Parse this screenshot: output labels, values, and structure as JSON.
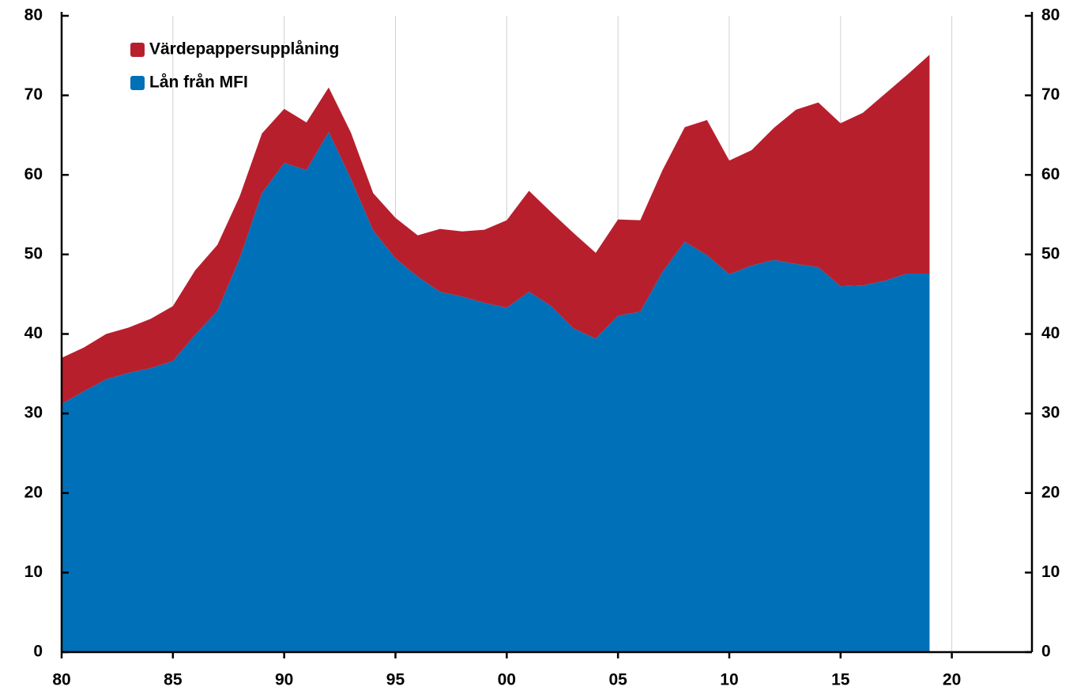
{
  "chart_data": {
    "type": "stacked-area",
    "x": [
      1980,
      1981,
      1982,
      1983,
      1984,
      1985,
      1986,
      1987,
      1988,
      1989,
      1990,
      1991,
      1992,
      1993,
      1994,
      1995,
      1996,
      1997,
      1998,
      1999,
      2000,
      2001,
      2002,
      2003,
      2004,
      2005,
      2006,
      2007,
      2008,
      2009,
      2010,
      2011,
      2012,
      2013,
      2014,
      2015,
      2016,
      2017,
      2018,
      2019
    ],
    "series": [
      {
        "name": "Lån från MFI",
        "color": "#0070b8",
        "values": [
          31.2,
          32.8,
          34.3,
          35.1,
          35.7,
          36.6,
          39.9,
          42.9,
          49.5,
          57.7,
          61.5,
          60.6,
          65.4,
          59.5,
          53.0,
          49.5,
          47.2,
          45.3,
          44.7,
          43.9,
          43.3,
          45.3,
          43.5,
          40.7,
          39.4,
          42.3,
          42.8,
          47.8,
          51.6,
          49.9,
          47.5,
          48.6,
          49.3,
          48.8,
          48.4,
          46.0,
          46.1,
          46.7,
          47.6,
          47.6
        ]
      },
      {
        "name": "Värdepappersupplåning",
        "color": "#b81f2d",
        "values": [
          5.8,
          5.5,
          5.7,
          5.7,
          6.2,
          6.9,
          8.1,
          8.3,
          7.8,
          7.5,
          6.8,
          6.0,
          5.6,
          5.8,
          4.7,
          5.1,
          5.2,
          7.9,
          8.2,
          9.2,
          11.0,
          12.7,
          11.8,
          12.0,
          10.8,
          12.1,
          11.5,
          12.8,
          14.4,
          17.0,
          14.3,
          14.5,
          16.6,
          19.4,
          20.7,
          20.5,
          21.7,
          23.5,
          25.0,
          27.5
        ]
      }
    ],
    "xlim": [
      1980,
      2023.6
    ],
    "xticks": [
      {
        "value": 1980,
        "label": "80"
      },
      {
        "value": 1985,
        "label": "85"
      },
      {
        "value": 1990,
        "label": "90"
      },
      {
        "value": 1995,
        "label": "95"
      },
      {
        "value": 2000,
        "label": "00"
      },
      {
        "value": 2005,
        "label": "05"
      },
      {
        "value": 2010,
        "label": "10"
      },
      {
        "value": 2015,
        "label": "15"
      },
      {
        "value": 2020,
        "label": "20"
      }
    ],
    "ylim": [
      0,
      80
    ],
    "yticks": [
      0,
      10,
      20,
      30,
      40,
      50,
      60,
      70,
      80
    ],
    "y2lim": [
      0,
      80
    ],
    "y2ticks": [
      0,
      10,
      20,
      30,
      40,
      50,
      60,
      70,
      80
    ],
    "grid": "x",
    "legend": "top-left"
  }
}
